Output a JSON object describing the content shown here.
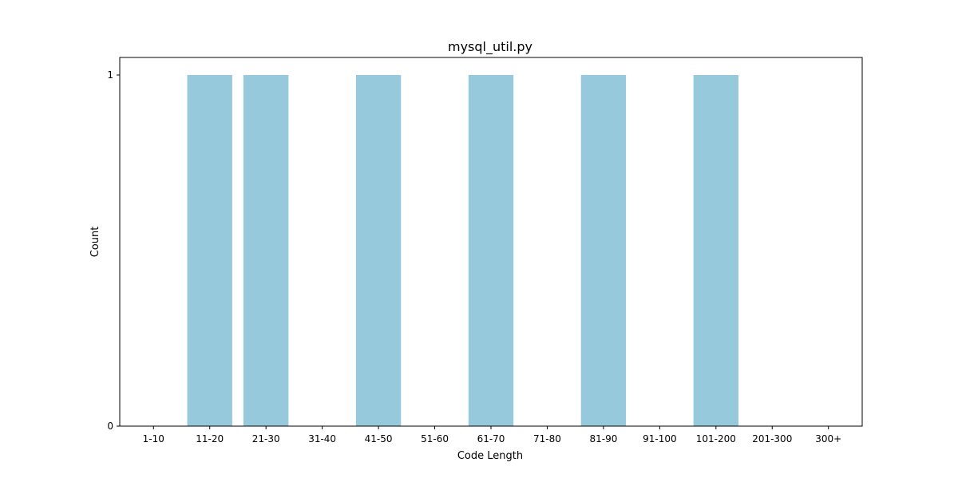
{
  "chart_data": {
    "type": "bar",
    "title": "mysql_util.py",
    "xlabel": "Code Length",
    "ylabel": "Count",
    "categories": [
      "1-10",
      "11-20",
      "21-30",
      "31-40",
      "41-50",
      "51-60",
      "61-70",
      "71-80",
      "81-90",
      "91-100",
      "101-200",
      "201-300",
      "300+"
    ],
    "values": [
      0,
      1,
      1,
      0,
      1,
      0,
      1,
      0,
      1,
      0,
      1,
      0,
      0
    ],
    "ylim": [
      0,
      1.05
    ],
    "yticks": [
      0,
      1
    ],
    "bar_color": "#96c9dc",
    "grid": false,
    "legend": "none"
  }
}
